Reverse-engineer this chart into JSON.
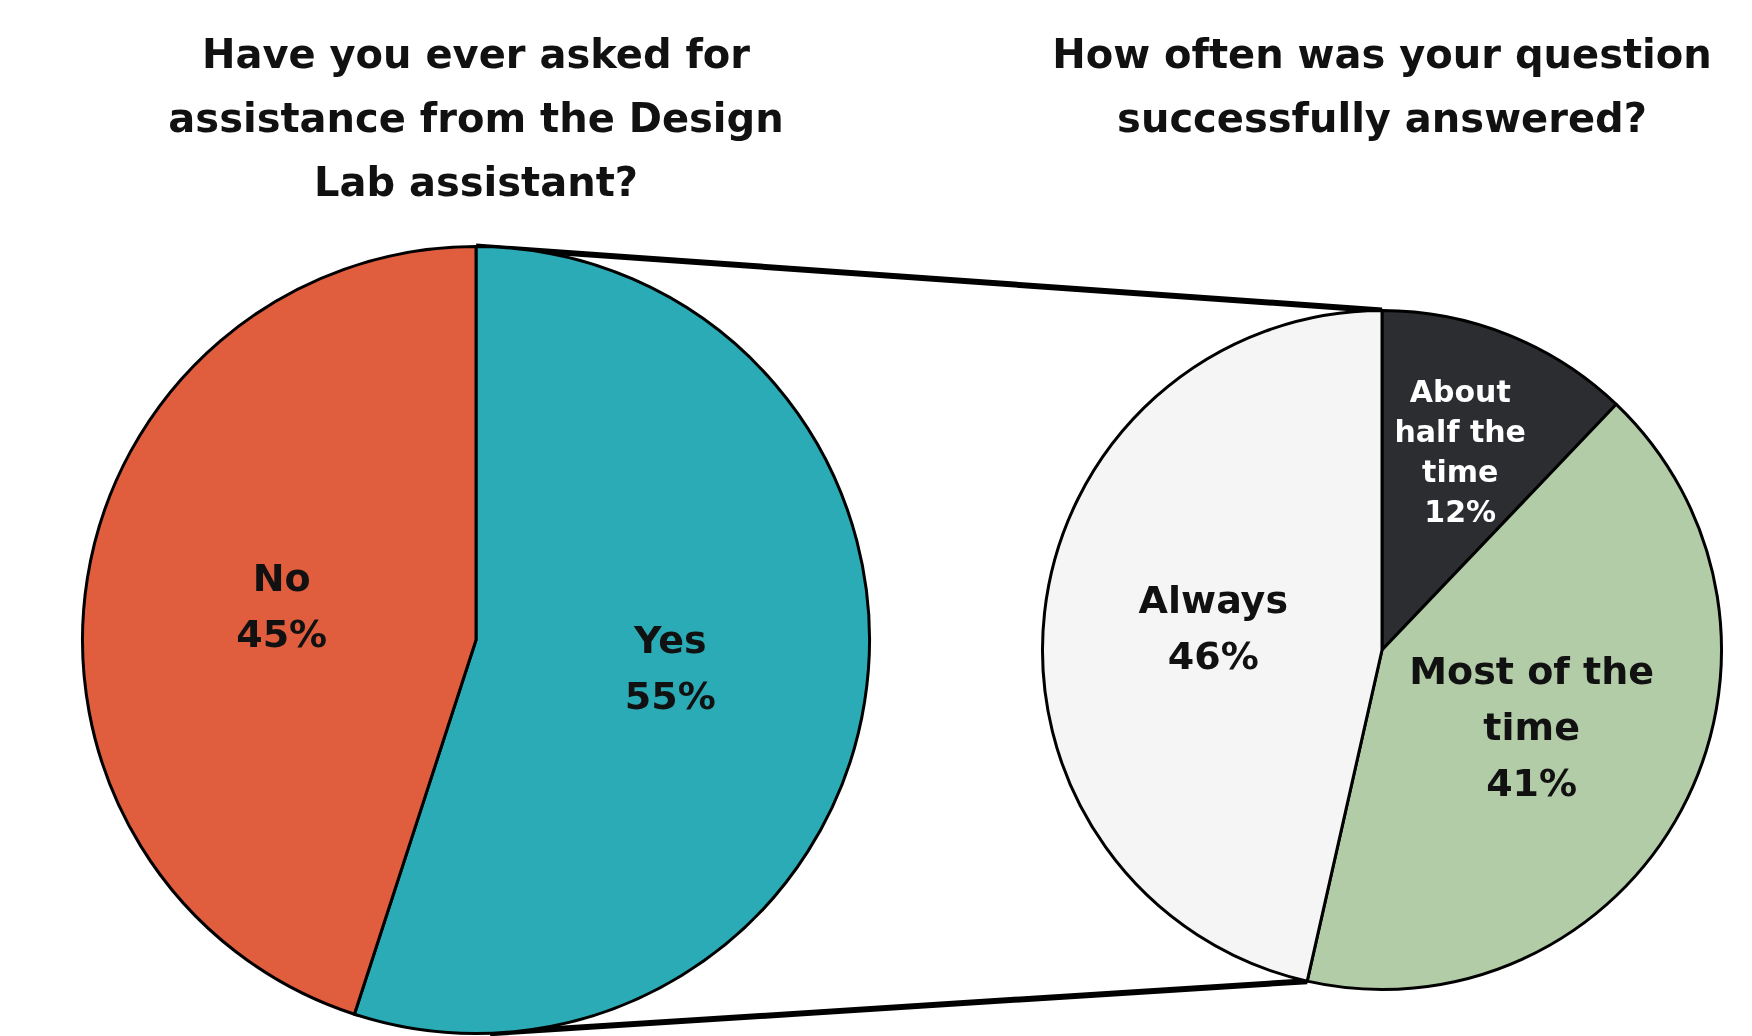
{
  "chart_data": [
    {
      "type": "pie",
      "title": "Have you ever asked for assistance from the Design Lab assistant?",
      "categories": [
        "Yes",
        "No"
      ],
      "values": [
        55,
        45
      ],
      "colors": [
        "#2aabb5",
        "#e05e3e"
      ],
      "value_labels": [
        "55%",
        "45%"
      ],
      "legend": false
    },
    {
      "type": "pie",
      "title": "How often was your question successfully answered?",
      "categories": [
        "About half the time",
        "Most of the time",
        "Always"
      ],
      "values": [
        12,
        41,
        46
      ],
      "colors": [
        "#2b2d31",
        "#b3cca8",
        "#f5f5f5"
      ],
      "value_labels": [
        "12%",
        "41%",
        "46%"
      ],
      "legend": false
    }
  ]
}
